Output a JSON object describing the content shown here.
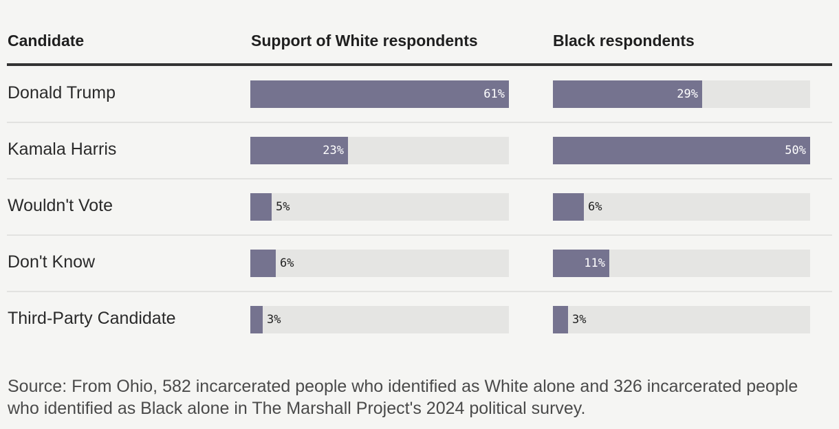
{
  "headers": {
    "candidate": "Candidate",
    "white": "Support of White respondents",
    "black": "Black respondents"
  },
  "colors": {
    "bar": "#75738f",
    "track": "#e5e5e3",
    "background": "#f5f5f3"
  },
  "chart_data": {
    "type": "bar",
    "categories": [
      "Donald Trump",
      "Kamala Harris",
      "Wouldn't Vote",
      "Don't Know",
      "Third-Party Candidate"
    ],
    "series": [
      {
        "name": "Support of White respondents",
        "values": [
          61,
          23,
          5,
          6,
          3
        ]
      },
      {
        "name": "Black respondents",
        "values": [
          29,
          50,
          6,
          11,
          3
        ]
      }
    ],
    "value_labels": {
      "white": [
        "61%",
        "23%",
        "5%",
        "6%",
        "3%"
      ],
      "black": [
        "29%",
        "50%",
        "6%",
        "11%",
        "3%"
      ]
    },
    "scales": {
      "white": [
        0,
        61
      ],
      "black": [
        0,
        50
      ]
    }
  },
  "source": "Source: From Ohio, 582 incarcerated people who identified as White alone and 326 incarcerated people who identified as Black alone in The Marshall Project's 2024 political survey."
}
